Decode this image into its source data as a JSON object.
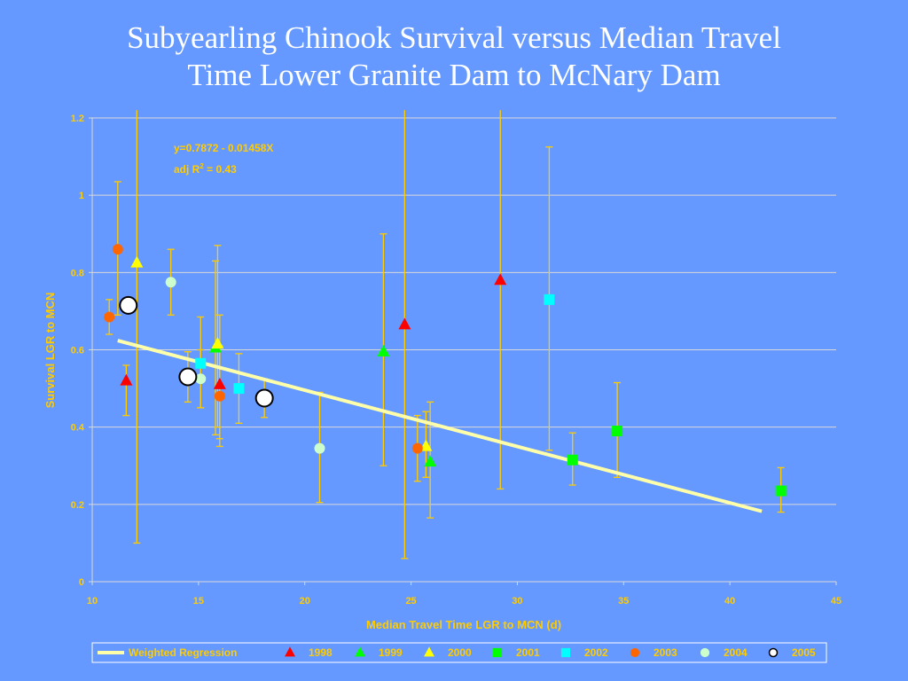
{
  "slide": {
    "title_line1": "Subyearling Chinook Survival versus Median Travel",
    "title_line2": "Time Lower Granite Dam to McNary Dam"
  },
  "colors": {
    "background": "#6699ff",
    "axis_text": "#ffcc00",
    "gridline": "#d9d9d9",
    "error_bar": "#ffcc00",
    "regression_line": "#ffffaa",
    "title": "#ffffff"
  },
  "chart_data": {
    "type": "scatter",
    "xlabel": "Median Travel Time LGR to MCN (d)",
    "ylabel": "Survival LGR to MCN",
    "xlim": [
      10,
      45
    ],
    "ylim": [
      0,
      1.2
    ],
    "xticks": [
      "10",
      "15",
      "20",
      "25",
      "30",
      "35",
      "40",
      "45"
    ],
    "yticks": [
      "0",
      "0.2",
      "0.4",
      "0.6",
      "0.8",
      "1",
      "1.2"
    ],
    "grid": "horizontal",
    "legend_position": "bottom",
    "annotation": {
      "equation": "y=0.7872 - 0.01458X",
      "r2_prefix": "adj R",
      "r2_sup": "2",
      "r2_suffix": " = 0.43"
    },
    "regression": {
      "name": "Weighted Regression",
      "intercept": 0.7872,
      "slope": -0.01458,
      "x_range": [
        11.2,
        41.5
      ]
    },
    "series": [
      {
        "name": "1998",
        "marker": "triangle",
        "color": "#ff0000",
        "points": [
          {
            "x": 11.6,
            "y": 0.52,
            "lo": 0.43,
            "hi": 0.56
          },
          {
            "x": 16.0,
            "y": 0.51,
            "lo": 0.37,
            "hi": 0.69
          },
          {
            "x": 24.7,
            "y": 0.665,
            "lo": 0.06,
            "hi": 1.22
          },
          {
            "x": 29.2,
            "y": 0.78,
            "lo": 0.24,
            "hi": 1.22
          }
        ]
      },
      {
        "name": "1999",
        "marker": "triangle",
        "color": "#00ff00",
        "points": [
          {
            "x": 15.8,
            "y": 0.605,
            "lo": 0.38,
            "hi": 0.83
          },
          {
            "x": 23.7,
            "y": 0.595,
            "lo": 0.3,
            "hi": 0.9
          },
          {
            "x": 25.9,
            "y": 0.31,
            "lo": 0.165,
            "hi": 0.465
          }
        ]
      },
      {
        "name": "2000",
        "marker": "triangle",
        "color": "#ffff00",
        "points": [
          {
            "x": 12.1,
            "y": 0.825,
            "lo": 0.1,
            "hi": 1.22
          },
          {
            "x": 15.9,
            "y": 0.615,
            "lo": 0.4,
            "hi": 0.87
          },
          {
            "x": 25.7,
            "y": 0.35,
            "lo": 0.27,
            "hi": 0.44
          }
        ]
      },
      {
        "name": "2001",
        "marker": "square",
        "color": "#00ff00",
        "points": [
          {
            "x": 32.6,
            "y": 0.315,
            "lo": 0.25,
            "hi": 0.385
          },
          {
            "x": 34.7,
            "y": 0.39,
            "lo": 0.27,
            "hi": 0.515
          },
          {
            "x": 42.4,
            "y": 0.235,
            "lo": 0.18,
            "hi": 0.295
          }
        ]
      },
      {
        "name": "2002",
        "marker": "square",
        "color": "#00ffff",
        "points": [
          {
            "x": 15.1,
            "y": 0.565,
            "lo": 0.45,
            "hi": 0.685
          },
          {
            "x": 16.9,
            "y": 0.5,
            "lo": 0.41,
            "hi": 0.59
          },
          {
            "x": 31.5,
            "y": 0.73,
            "lo": 0.34,
            "hi": 1.125
          }
        ]
      },
      {
        "name": "2003",
        "marker": "circle",
        "color": "#ff6600",
        "points": [
          {
            "x": 10.8,
            "y": 0.685,
            "lo": 0.64,
            "hi": 0.73
          },
          {
            "x": 11.2,
            "y": 0.86,
            "lo": 0.69,
            "hi": 1.035
          },
          {
            "x": 16.0,
            "y": 0.48,
            "lo": 0.35,
            "hi": 0.61
          },
          {
            "x": 25.3,
            "y": 0.345,
            "lo": 0.26,
            "hi": 0.43
          }
        ]
      },
      {
        "name": "2004",
        "marker": "circle",
        "color": "#ccffcc",
        "points": [
          {
            "x": 13.7,
            "y": 0.775,
            "lo": 0.69,
            "hi": 0.86
          },
          {
            "x": 15.1,
            "y": 0.525,
            "lo": 0.45,
            "hi": 0.6
          },
          {
            "x": 20.7,
            "y": 0.345,
            "lo": 0.205,
            "hi": 0.49
          }
        ]
      },
      {
        "name": "2005",
        "marker": "circle-large",
        "color": "#ffffff",
        "points": [
          {
            "x": 11.7,
            "y": 0.715,
            "lo": 0.715,
            "hi": 0.715
          },
          {
            "x": 14.5,
            "y": 0.53,
            "lo": 0.465,
            "hi": 0.595
          },
          {
            "x": 18.1,
            "y": 0.475,
            "lo": 0.425,
            "hi": 0.525
          }
        ]
      }
    ]
  }
}
